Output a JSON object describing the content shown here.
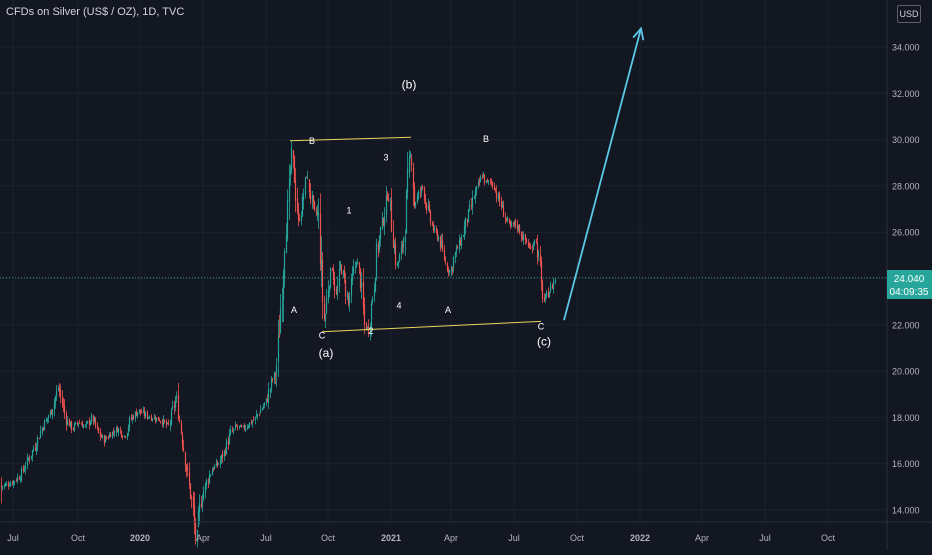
{
  "chart_data": {
    "type": "candlestick",
    "title": "CFDs on Silver (US$ / OZ), 1D, TVC",
    "currency": "USD",
    "x_tick_labels": [
      "Jul",
      "Oct",
      "2020",
      "Apr",
      "Jul",
      "Oct",
      "2021",
      "Apr",
      "Jul",
      "Oct",
      "2022",
      "Apr",
      "Jul",
      "Oct"
    ],
    "y_tick_labels": [
      "14.000",
      "16.000",
      "18.000",
      "20.000",
      "22.000",
      "24.000",
      "26.000",
      "28.000",
      "30.000",
      "32.000",
      "34.000"
    ],
    "y_ticks": [
      14,
      16,
      18,
      20,
      22,
      24,
      26,
      28,
      30,
      32,
      34
    ],
    "ylim": [
      13.5,
      35.5
    ],
    "last_price": "24.040",
    "countdown": "04:09:35",
    "colors": {
      "up": "#26a69a",
      "down": "#ef5350",
      "background": "#131722",
      "grid": "#1e222d",
      "axis_text": "#b2b5be",
      "annotation": "#ffffff",
      "trendline": "#e8d75a",
      "projection": "#5ac8e6",
      "price_tag": "#26a69a",
      "price_line": "#2a8c86"
    },
    "price_path": [
      [
        0,
        15.0
      ],
      [
        6,
        15.1
      ],
      [
        12,
        15.2
      ],
      [
        20,
        15.5
      ],
      [
        28,
        16.2
      ],
      [
        35,
        16.8
      ],
      [
        42,
        17.6
      ],
      [
        50,
        18.2
      ],
      [
        58,
        19.3
      ],
      [
        62,
        18.6
      ],
      [
        66,
        17.9
      ],
      [
        72,
        17.5
      ],
      [
        78,
        17.8
      ],
      [
        85,
        17.6
      ],
      [
        92,
        18.0
      ],
      [
        98,
        17.3
      ],
      [
        104,
        17.0
      ],
      [
        110,
        17.3
      ],
      [
        118,
        17.5
      ],
      [
        124,
        17.2
      ],
      [
        130,
        17.9
      ],
      [
        138,
        18.3
      ],
      [
        145,
        18.1
      ],
      [
        152,
        18.0
      ],
      [
        160,
        17.9
      ],
      [
        168,
        17.6
      ],
      [
        172,
        18.2
      ],
      [
        176,
        18.9
      ],
      [
        180,
        17.6
      ],
      [
        184,
        16.5
      ],
      [
        188,
        15.2
      ],
      [
        192,
        14.2
      ],
      [
        196,
        12.5
      ],
      [
        200,
        14.3
      ],
      [
        206,
        15.2
      ],
      [
        212,
        15.8
      ],
      [
        218,
        16.0
      ],
      [
        224,
        16.5
      ],
      [
        230,
        17.3
      ],
      [
        236,
        17.6
      ],
      [
        242,
        17.5
      ],
      [
        248,
        17.7
      ],
      [
        254,
        17.9
      ],
      [
        260,
        18.3
      ],
      [
        266,
        18.7
      ],
      [
        271,
        19.5
      ],
      [
        276,
        20.0
      ],
      [
        279,
        21.8
      ],
      [
        282,
        23.8
      ],
      [
        285,
        26.2
      ],
      [
        288,
        27.2
      ],
      [
        291,
        29.5
      ],
      [
        294,
        28.4
      ],
      [
        298,
        26.4
      ],
      [
        302,
        27.2
      ],
      [
        306,
        28.5
      ],
      [
        310,
        27.6
      ],
      [
        314,
        26.8
      ],
      [
        318,
        26.8
      ],
      [
        321,
        24.0
      ],
      [
        324,
        22.0
      ],
      [
        328,
        23.8
      ],
      [
        332,
        24.5
      ],
      [
        336,
        23.2
      ],
      [
        340,
        24.6
      ],
      [
        344,
        23.8
      ],
      [
        348,
        22.9
      ],
      [
        352,
        24.0
      ],
      [
        356,
        24.8
      ],
      [
        360,
        24.0
      ],
      [
        364,
        22.0
      ],
      [
        368,
        21.8
      ],
      [
        372,
        23.2
      ],
      [
        376,
        25.0
      ],
      [
        380,
        26.0
      ],
      [
        384,
        26.8
      ],
      [
        388,
        27.8
      ],
      [
        392,
        26.0
      ],
      [
        396,
        24.5
      ],
      [
        400,
        25.0
      ],
      [
        404,
        26.0
      ],
      [
        408,
        28.5
      ],
      [
        411,
        29.6
      ],
      [
        414,
        27.2
      ],
      [
        418,
        27.6
      ],
      [
        422,
        28.0
      ],
      [
        426,
        27.2
      ],
      [
        430,
        26.5
      ],
      [
        434,
        26.0
      ],
      [
        438,
        25.8
      ],
      [
        442,
        25.2
      ],
      [
        446,
        24.5
      ],
      [
        450,
        24.3
      ],
      [
        454,
        25.0
      ],
      [
        458,
        25.4
      ],
      [
        462,
        25.8
      ],
      [
        466,
        26.5
      ],
      [
        470,
        27.0
      ],
      [
        474,
        27.6
      ],
      [
        478,
        28.0
      ],
      [
        482,
        28.5
      ],
      [
        486,
        28.1
      ],
      [
        490,
        28.2
      ],
      [
        494,
        28.0
      ],
      [
        498,
        27.4
      ],
      [
        502,
        27.0
      ],
      [
        506,
        26.5
      ],
      [
        510,
        26.2
      ],
      [
        514,
        26.4
      ],
      [
        518,
        26.2
      ],
      [
        522,
        25.8
      ],
      [
        526,
        25.6
      ],
      [
        530,
        25.2
      ],
      [
        534,
        25.8
      ],
      [
        538,
        25.0
      ],
      [
        541,
        23.6
      ],
      [
        544,
        23.0
      ],
      [
        548,
        23.4
      ],
      [
        552,
        23.7
      ],
      [
        555,
        24.04
      ]
    ],
    "wave_labels": [
      {
        "text": "(b)",
        "x": 409,
        "y": 32.2,
        "size": 12
      },
      {
        "text": "B",
        "x": 312,
        "y": 29.8,
        "size": 9
      },
      {
        "text": "3",
        "x": 386,
        "y": 29.1,
        "size": 9
      },
      {
        "text": "B",
        "x": 486,
        "y": 29.9,
        "size": 9
      },
      {
        "text": "1",
        "x": 349,
        "y": 26.8,
        "size": 9
      },
      {
        "text": "A",
        "x": 294,
        "y": 22.5,
        "size": 9
      },
      {
        "text": "4",
        "x": 399,
        "y": 22.7,
        "size": 9
      },
      {
        "text": "A",
        "x": 448,
        "y": 22.5,
        "size": 9
      },
      {
        "text": "C",
        "x": 322,
        "y": 21.4,
        "size": 9
      },
      {
        "text": "C",
        "x": 541,
        "y": 21.8,
        "size": 9
      },
      {
        "text": "2",
        "x": 371,
        "y": 21.6,
        "size": 9
      },
      {
        "text": "(a)",
        "x": 326,
        "y": 20.6,
        "size": 12
      },
      {
        "text": "(c)",
        "x": 544,
        "y": 21.1,
        "size": 12
      }
    ],
    "trendlines": [
      {
        "x1": 290,
        "y1": 29.95,
        "x2": 411,
        "y2": 30.1
      },
      {
        "x1": 322,
        "y1": 21.7,
        "x2": 541,
        "y2": 22.15
      }
    ],
    "projection": {
      "x1": 564,
      "y1": 22.2,
      "x2": 641,
      "y2": 34.8
    }
  }
}
